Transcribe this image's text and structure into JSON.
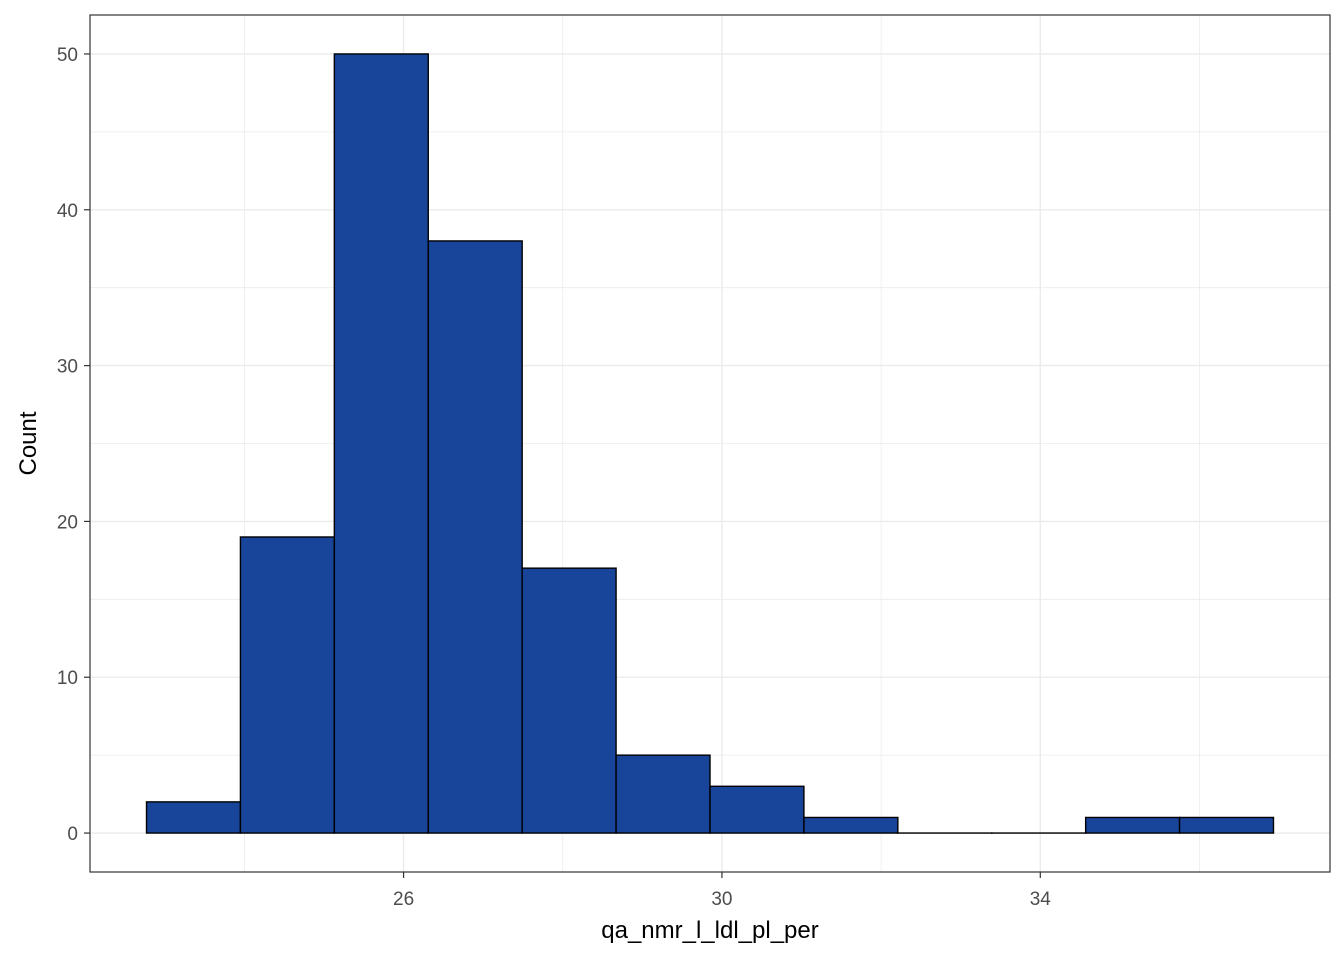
{
  "chart_data": {
    "type": "histogram",
    "title": "",
    "xlabel": "qa_nmr_l_ldl_pl_per",
    "ylabel": "Count",
    "bins": [
      {
        "x0": 22.77,
        "x1": 23.95,
        "count": 2
      },
      {
        "x0": 23.95,
        "x1": 25.13,
        "count": 19
      },
      {
        "x0": 25.13,
        "x1": 26.31,
        "count": 50
      },
      {
        "x0": 26.31,
        "x1": 27.49,
        "count": 38
      },
      {
        "x0": 27.49,
        "x1": 28.67,
        "count": 17
      },
      {
        "x0": 28.67,
        "x1": 29.85,
        "count": 5
      },
      {
        "x0": 29.85,
        "x1": 31.03,
        "count": 3
      },
      {
        "x0": 31.03,
        "x1": 32.21,
        "count": 1
      },
      {
        "x0": 32.21,
        "x1": 33.39,
        "count": 0
      },
      {
        "x0": 33.39,
        "x1": 34.57,
        "count": 0
      },
      {
        "x0": 34.57,
        "x1": 35.75,
        "count": 1
      },
      {
        "x0": 35.75,
        "x1": 36.93,
        "count": 1
      }
    ],
    "xlim": [
      22.06,
      37.64
    ],
    "ylim": [
      -2.5,
      52.5
    ],
    "x_ticks": [
      26,
      30,
      34
    ],
    "y_ticks": [
      0,
      10,
      20,
      30,
      40,
      50
    ],
    "x_minor_ticks": [
      24,
      28,
      32,
      36
    ],
    "y_minor_ticks": [
      5,
      15,
      25,
      35,
      45
    ],
    "grid": true,
    "bar_fill": "#18449a",
    "bar_stroke": "#000000",
    "panel_border": "#333333",
    "grid_color": "#ebebeb"
  }
}
